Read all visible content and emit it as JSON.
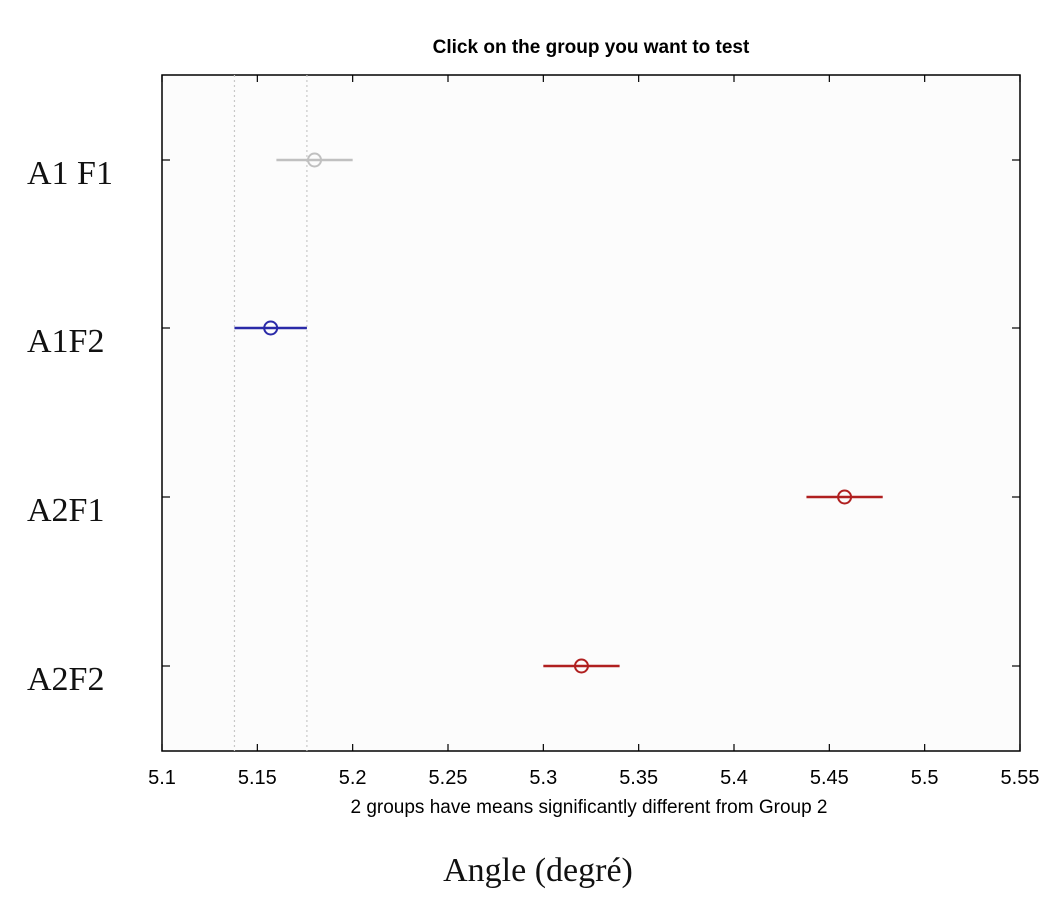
{
  "chart_data": {
    "type": "scatter",
    "title": "Click on the group you want to test",
    "subtitle": "2 groups have means significantly different from Group 2",
    "xlabel": "Angle (degré)",
    "ylabel": "",
    "xlim": [
      5.1,
      5.55
    ],
    "x_ticks": [
      5.1,
      5.15,
      5.2,
      5.25,
      5.3,
      5.35,
      5.4,
      5.45,
      5.5,
      5.55
    ],
    "x_tick_labels": [
      "5.1",
      "5.15",
      "5.2",
      "5.25",
      "5.3",
      "5.35",
      "5.4",
      "5.45",
      "5.5",
      "5.55"
    ],
    "grid": false,
    "reference_lines": [
      5.138,
      5.176
    ],
    "groups": [
      {
        "label": "A1 F1",
        "mean": 5.18,
        "low": 5.16,
        "high": 5.2,
        "color": "#c0c0c0"
      },
      {
        "label": "A1F2",
        "mean": 5.157,
        "low": 5.138,
        "high": 5.176,
        "color": "#2a2aa8"
      },
      {
        "label": "A2F1",
        "mean": 5.458,
        "low": 5.438,
        "high": 5.478,
        "color": "#b02020"
      },
      {
        "label": "A2F2",
        "mean": 5.32,
        "low": 5.3,
        "high": 5.34,
        "color": "#b02020"
      }
    ]
  }
}
